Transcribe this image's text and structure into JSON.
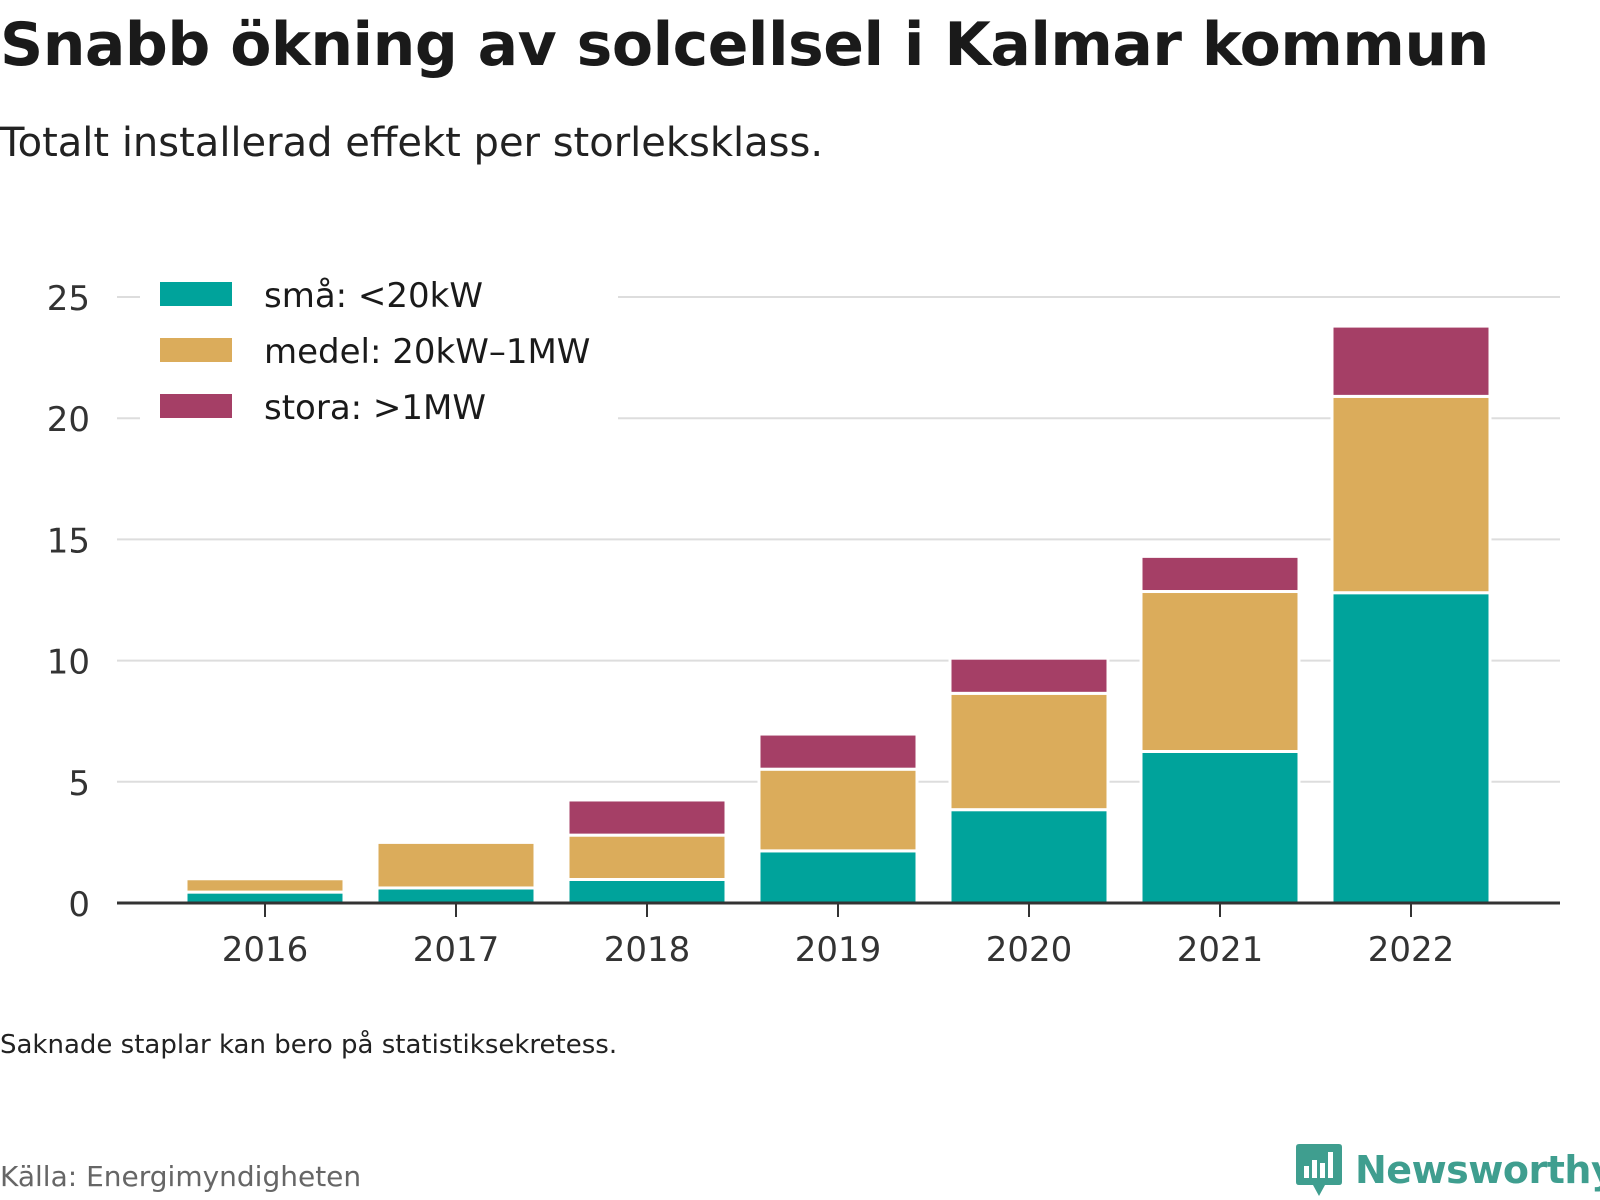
{
  "title": "Snabb ökning av solcellsel i Kalmar kommun",
  "subtitle": "Totalt installerad effekt per storleksklass.",
  "note": "Saknade staplar kan bero på statistiksekretess.",
  "source": "Källa: Energimyndigheten",
  "brand": {
    "name": "Newsworthy",
    "icon": "newsworthy-logo-icon"
  },
  "colors": {
    "sma": "#00a39b",
    "medel": "#dbac5b",
    "stora": "#a53f66",
    "grid": "#dddddd",
    "axis": "#333333"
  },
  "chart_data": {
    "type": "bar",
    "stacked": true,
    "categories": [
      "2016",
      "2017",
      "2018",
      "2019",
      "2020",
      "2021",
      "2022"
    ],
    "series": [
      {
        "name": "små: <20kW",
        "color": "#00a39b",
        "values": [
          0.45,
          0.62,
          0.97,
          2.15,
          3.85,
          6.25,
          12.8
        ]
      },
      {
        "name": "medel: 20kW–1MW",
        "color": "#dbac5b",
        "values": [
          0.55,
          1.88,
          1.83,
          3.37,
          4.8,
          6.6,
          8.1
        ]
      },
      {
        "name": "stora: >1MW",
        "color": "#a53f66",
        "values": [
          0,
          0,
          1.45,
          1.45,
          1.45,
          1.45,
          2.9
        ]
      }
    ],
    "yticks": [
      "0",
      "5",
      "10",
      "15",
      "20",
      "25"
    ],
    "ylim": [
      0,
      25
    ],
    "grid": true,
    "legend": "top-left"
  }
}
